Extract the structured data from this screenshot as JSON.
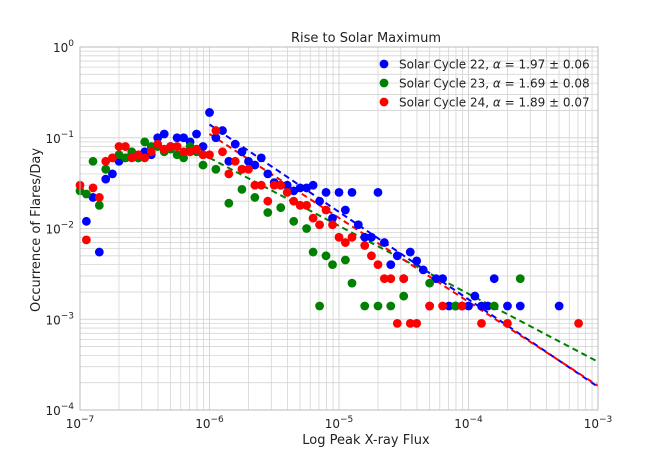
{
  "chart_data": {
    "type": "scatter",
    "title": "Rise to Solar Maximum",
    "xlabel": "Log Peak X-ray Flux",
    "ylabel": "Occurrence of Flares/Day",
    "xscale": "log",
    "yscale": "log",
    "xlim": [
      1e-07,
      0.001
    ],
    "ylim": [
      0.0001,
      1
    ],
    "grid": true,
    "legend_position": "top-right",
    "x_ticks": [
      {
        "base": "10",
        "exp": "−7"
      },
      {
        "base": "10",
        "exp": "−6"
      },
      {
        "base": "10",
        "exp": "−5"
      },
      {
        "base": "10",
        "exp": "−4"
      },
      {
        "base": "10",
        "exp": "−3"
      }
    ],
    "y_ticks": [
      {
        "base": "10",
        "exp": "−4"
      },
      {
        "base": "10",
        "exp": "−3"
      },
      {
        "base": "10",
        "exp": "−2"
      },
      {
        "base": "10",
        "exp": "−1"
      },
      {
        "base": "10",
        "exp": "0"
      }
    ],
    "series": [
      {
        "name": "Solar Cycle 22",
        "legend_alpha_symbol": "α",
        "legend_value": "= 1.97 ± 0.06",
        "color": "#0000ff",
        "fit": {
          "alpha": 1.97,
          "x": [
            1e-06,
            0.001
          ],
          "y": [
            0.14,
            0.00018
          ]
        },
        "points": [
          [
            1.12e-07,
            0.012
          ],
          [
            1.26e-07,
            0.022
          ],
          [
            1.41e-07,
            0.0055
          ],
          [
            1.58e-07,
            0.035
          ],
          [
            1.78e-07,
            0.04
          ],
          [
            2e-07,
            0.055
          ],
          [
            2.24e-07,
            0.06
          ],
          [
            2.51e-07,
            0.065
          ],
          [
            2.82e-07,
            0.06
          ],
          [
            3.16e-07,
            0.07
          ],
          [
            3.55e-07,
            0.065
          ],
          [
            3.98e-07,
            0.1
          ],
          [
            4.47e-07,
            0.11
          ],
          [
            5.01e-07,
            0.08
          ],
          [
            5.62e-07,
            0.1
          ],
          [
            6.31e-07,
            0.1
          ],
          [
            7.08e-07,
            0.09
          ],
          [
            7.94e-07,
            0.11
          ],
          [
            8.91e-07,
            0.08
          ],
          [
            1e-06,
            0.19
          ],
          [
            1.12e-06,
            0.1
          ],
          [
            1.26e-06,
            0.12
          ],
          [
            1.41e-06,
            0.055
          ],
          [
            1.58e-06,
            0.085
          ],
          [
            1.78e-06,
            0.07
          ],
          [
            2e-06,
            0.055
          ],
          [
            2.24e-06,
            0.05
          ],
          [
            2.51e-06,
            0.06
          ],
          [
            2.82e-06,
            0.04
          ],
          [
            3.16e-06,
            0.032
          ],
          [
            3.55e-06,
            0.03
          ],
          [
            3.98e-06,
            0.03
          ],
          [
            4.47e-06,
            0.026
          ],
          [
            5.01e-06,
            0.028
          ],
          [
            5.62e-06,
            0.028
          ],
          [
            6.31e-06,
            0.03
          ],
          [
            7.08e-06,
            0.02
          ],
          [
            7.94e-06,
            0.025
          ],
          [
            8.91e-06,
            0.013
          ],
          [
            1e-05,
            0.025
          ],
          [
            1.12e-05,
            0.016
          ],
          [
            1.26e-05,
            0.025
          ],
          [
            1.41e-05,
            0.011
          ],
          [
            1.58e-05,
            0.008
          ],
          [
            1.78e-05,
            0.008
          ],
          [
            2e-05,
            0.025
          ],
          [
            2.24e-05,
            0.007
          ],
          [
            2.51e-05,
            0.004
          ],
          [
            2.82e-05,
            0.005
          ],
          [
            3.16e-05,
            0.0028
          ],
          [
            3.55e-05,
            0.0055
          ],
          [
            3.98e-05,
            0.0044
          ],
          [
            4.47e-05,
            0.0035
          ],
          [
            5.01e-05,
            0.0014
          ],
          [
            5.62e-05,
            0.0028
          ],
          [
            6.31e-05,
            0.0028
          ],
          [
            7.08e-05,
            0.0014
          ],
          [
            7.94e-05,
            0.0014
          ],
          [
            8.91e-05,
            0.0014
          ],
          [
            0.0001,
            0.0014
          ],
          [
            0.000112,
            0.0018
          ],
          [
            0.000126,
            0.0014
          ],
          [
            0.000141,
            0.0014
          ],
          [
            0.000158,
            0.0028
          ],
          [
            0.0002,
            0.0014
          ],
          [
            0.000251,
            0.0014
          ],
          [
            0.000501,
            0.0014
          ]
        ]
      },
      {
        "name": "Solar Cycle 23",
        "legend_alpha_symbol": "α",
        "legend_value": "= 1.69 ± 0.08",
        "color": "#008000",
        "fit": {
          "alpha": 1.69,
          "x": [
            1e-06,
            0.001
          ],
          "y": [
            0.06,
            0.00034
          ]
        },
        "points": [
          [
            1e-07,
            0.026
          ],
          [
            1.12e-07,
            0.024
          ],
          [
            1.26e-07,
            0.055
          ],
          [
            1.41e-07,
            0.018
          ],
          [
            1.58e-07,
            0.045
          ],
          [
            1.78e-07,
            0.06
          ],
          [
            2e-07,
            0.065
          ],
          [
            2.24e-07,
            0.06
          ],
          [
            2.51e-07,
            0.07
          ],
          [
            2.82e-07,
            0.06
          ],
          [
            3.16e-07,
            0.09
          ],
          [
            3.55e-07,
            0.08
          ],
          [
            3.98e-07,
            0.08
          ],
          [
            4.47e-07,
            0.07
          ],
          [
            5.01e-07,
            0.075
          ],
          [
            5.62e-07,
            0.065
          ],
          [
            6.31e-07,
            0.06
          ],
          [
            7.08e-07,
            0.08
          ],
          [
            7.94e-07,
            0.07
          ],
          [
            8.91e-07,
            0.05
          ],
          [
            1.12e-06,
            0.045
          ],
          [
            1.41e-06,
            0.019
          ],
          [
            1.78e-06,
            0.027
          ],
          [
            2.24e-06,
            0.022
          ],
          [
            2.82e-06,
            0.015
          ],
          [
            3.55e-06,
            0.017
          ],
          [
            4.47e-06,
            0.012
          ],
          [
            5.62e-06,
            0.01
          ],
          [
            6.31e-06,
            0.0055
          ],
          [
            7.08e-06,
            0.0014
          ],
          [
            7.94e-06,
            0.005
          ],
          [
            8.91e-06,
            0.004
          ],
          [
            1.12e-05,
            0.0045
          ],
          [
            1.26e-05,
            0.0025
          ],
          [
            1.58e-05,
            0.0014
          ],
          [
            2e-05,
            0.0014
          ],
          [
            2.51e-05,
            0.0014
          ],
          [
            3.16e-05,
            0.0018
          ],
          [
            5.01e-05,
            0.0025
          ],
          [
            7.94e-05,
            0.0014
          ],
          [
            0.000158,
            0.0014
          ],
          [
            0.000251,
            0.0028
          ]
        ]
      },
      {
        "name": "Solar Cycle 24",
        "legend_alpha_symbol": "α",
        "legend_value": "= 1.89 ± 0.07",
        "color": "#ff0000",
        "fit": {
          "alpha": 1.89,
          "x": [
            1e-06,
            0.001
          ],
          "y": [
            0.11,
            0.000185
          ]
        },
        "points": [
          [
            1e-07,
            0.03
          ],
          [
            1.12e-07,
            0.0075
          ],
          [
            1.26e-07,
            0.028
          ],
          [
            1.41e-07,
            0.022
          ],
          [
            1.58e-07,
            0.055
          ],
          [
            1.78e-07,
            0.06
          ],
          [
            2e-07,
            0.08
          ],
          [
            2.24e-07,
            0.08
          ],
          [
            2.51e-07,
            0.06
          ],
          [
            2.82e-07,
            0.065
          ],
          [
            3.16e-07,
            0.06
          ],
          [
            3.55e-07,
            0.07
          ],
          [
            3.98e-07,
            0.085
          ],
          [
            4.47e-07,
            0.075
          ],
          [
            5.01e-07,
            0.08
          ],
          [
            5.62e-07,
            0.08
          ],
          [
            6.31e-07,
            0.07
          ],
          [
            7.08e-07,
            0.07
          ],
          [
            7.94e-07,
            0.075
          ],
          [
            8.91e-07,
            0.065
          ],
          [
            1e-06,
            0.065
          ],
          [
            1.12e-06,
            0.12
          ],
          [
            1.26e-06,
            0.07
          ],
          [
            1.41e-06,
            0.04
          ],
          [
            1.58e-06,
            0.055
          ],
          [
            1.78e-06,
            0.045
          ],
          [
            2e-06,
            0.045
          ],
          [
            2.24e-06,
            0.03
          ],
          [
            2.51e-06,
            0.03
          ],
          [
            2.82e-06,
            0.02
          ],
          [
            3.16e-06,
            0.03
          ],
          [
            3.55e-06,
            0.03
          ],
          [
            3.98e-06,
            0.025
          ],
          [
            4.47e-06,
            0.02
          ],
          [
            5.01e-06,
            0.018
          ],
          [
            5.62e-06,
            0.018
          ],
          [
            6.31e-06,
            0.013
          ],
          [
            7.08e-06,
            0.011
          ],
          [
            7.94e-06,
            0.016
          ],
          [
            8.91e-06,
            0.011
          ],
          [
            1e-05,
            0.008
          ],
          [
            1.12e-05,
            0.007
          ],
          [
            1.26e-05,
            0.008
          ],
          [
            1.58e-05,
            0.0065
          ],
          [
            1.78e-05,
            0.005
          ],
          [
            2e-05,
            0.004
          ],
          [
            2.24e-05,
            0.0028
          ],
          [
            2.51e-05,
            0.0028
          ],
          [
            2.82e-05,
            0.0009
          ],
          [
            3.16e-05,
            0.0028
          ],
          [
            3.55e-05,
            0.0009
          ],
          [
            3.98e-05,
            0.0009
          ],
          [
            5.01e-05,
            0.0014
          ],
          [
            6.31e-05,
            0.0014
          ],
          [
            8.91e-05,
            0.0014
          ],
          [
            0.000126,
            0.0009
          ],
          [
            0.0002,
            0.0009
          ],
          [
            0.000708,
            0.0009
          ]
        ]
      }
    ]
  }
}
